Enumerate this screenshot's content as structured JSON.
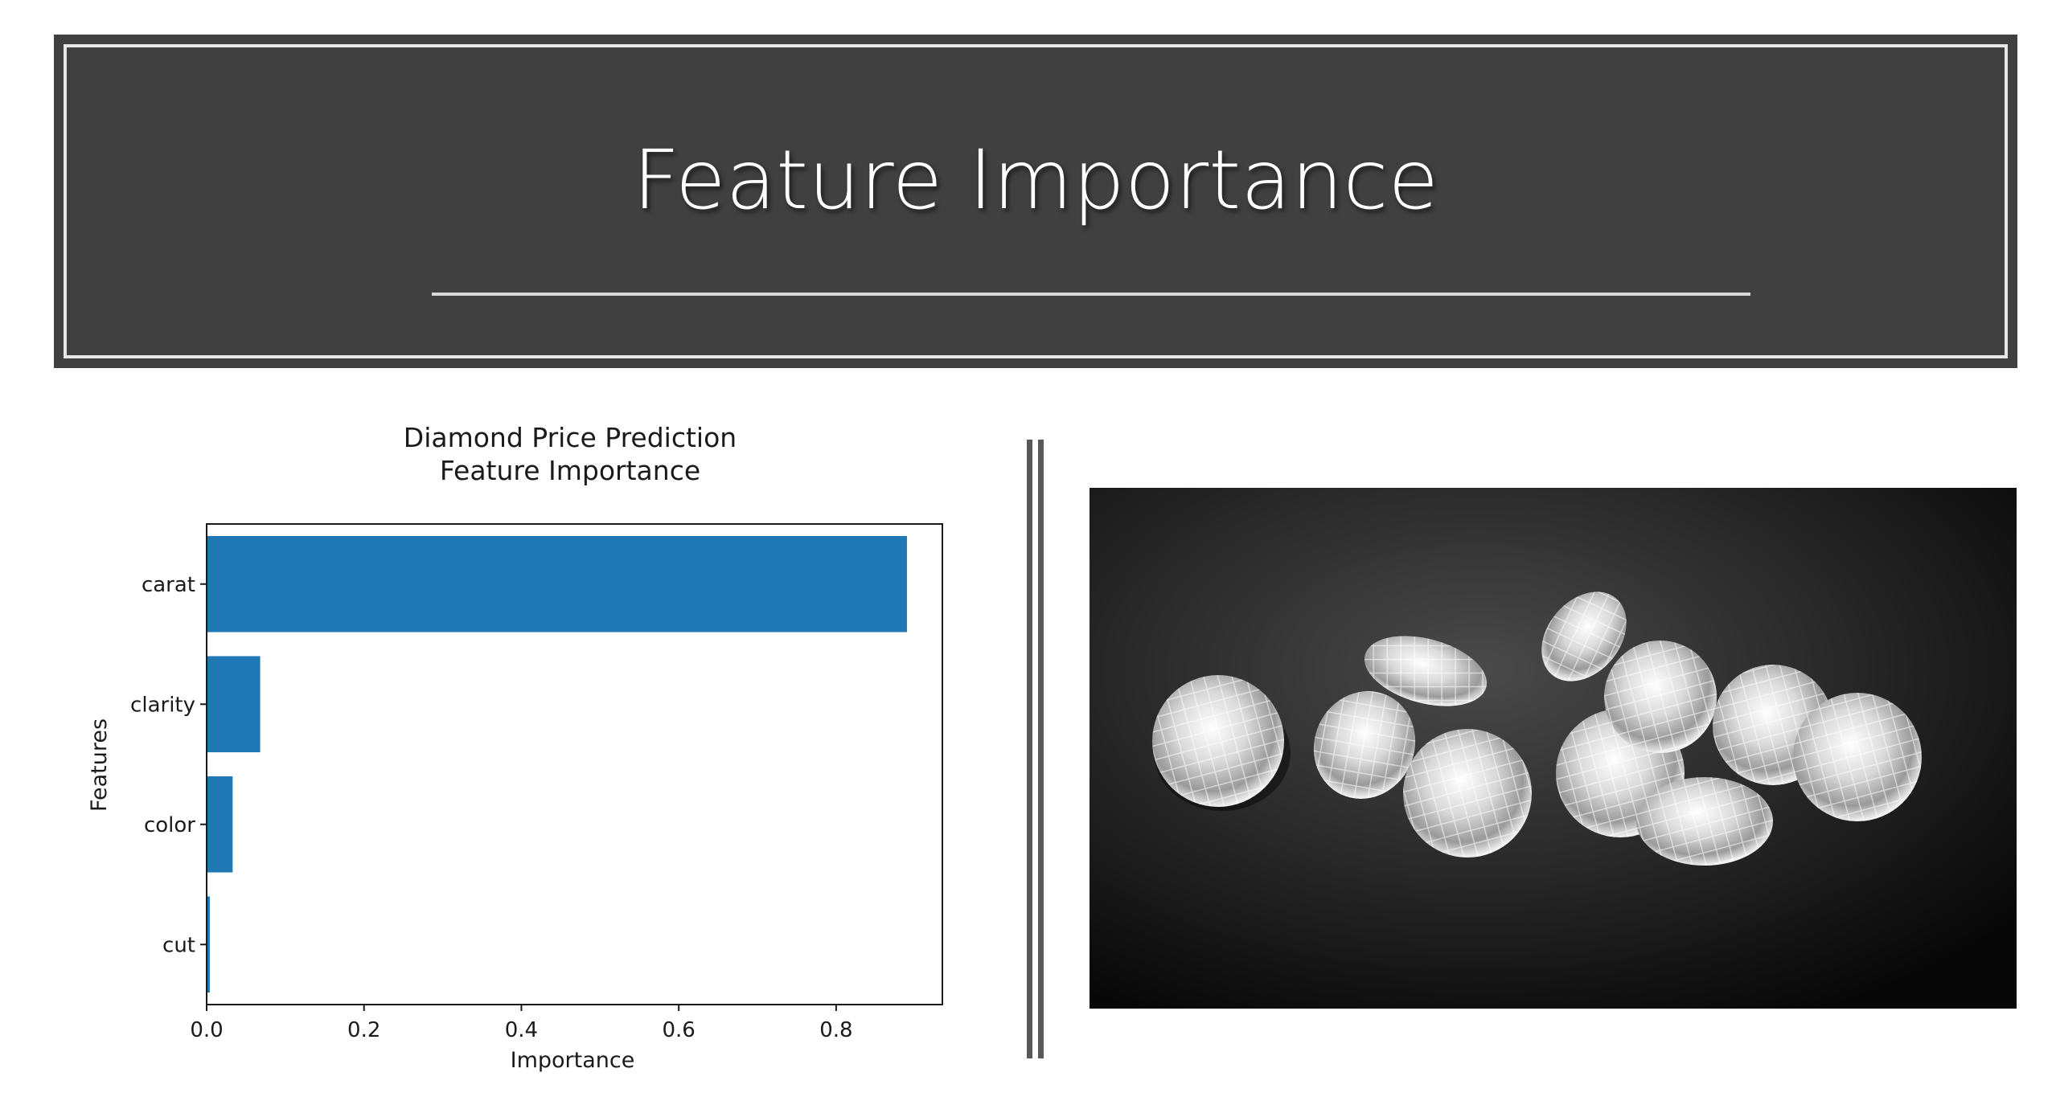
{
  "slide": {
    "title": "Feature Importance"
  },
  "chart_data": {
    "type": "bar",
    "orientation": "horizontal",
    "title": "Diamond Price Prediction\nFeature Importance",
    "title_lines": [
      "Diamond Price Prediction",
      "Feature Importance"
    ],
    "xlabel": "Importance",
    "ylabel": "Features",
    "categories": [
      "carat",
      "clarity",
      "color",
      "cut"
    ],
    "values": [
      0.89,
      0.068,
      0.033,
      0.004
    ],
    "xlim": [
      0.0,
      0.935
    ],
    "xticks": [
      0.0,
      0.2,
      0.4,
      0.6,
      0.8
    ],
    "xtick_labels": [
      "0.0",
      "0.2",
      "0.4",
      "0.6",
      "0.8"
    ],
    "bar_color": "#1f77b4",
    "grid": false,
    "legend": "none"
  },
  "colors": {
    "banner_background": "#404040",
    "banner_frame": "#e6e6e6",
    "divider": "#595959"
  }
}
